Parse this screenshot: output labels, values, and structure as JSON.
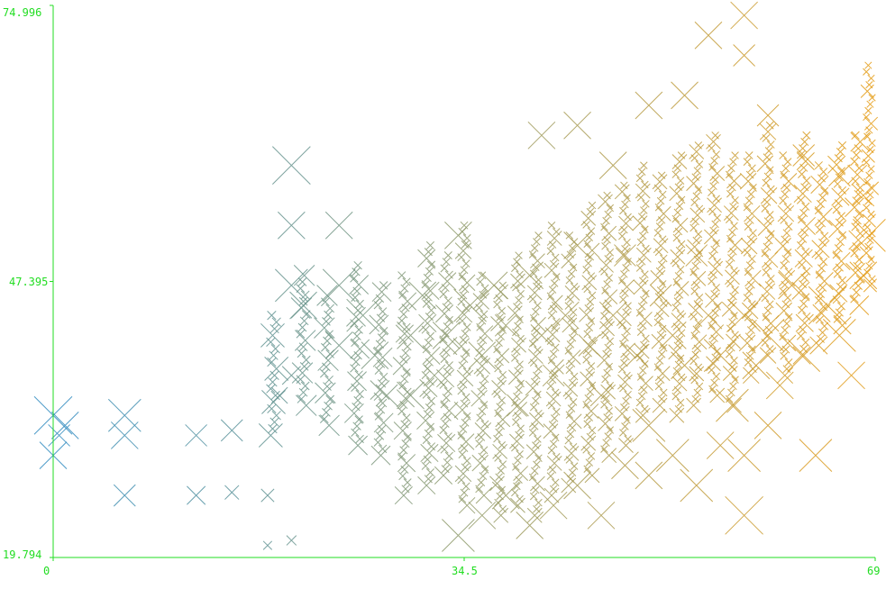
{
  "chart_data": {
    "type": "scatter",
    "marker": "x",
    "title": "",
    "xlabel": "",
    "ylabel": "",
    "xlim": [
      0,
      69
    ],
    "ylim": [
      19.794,
      74.996
    ],
    "x_ticks": [
      {
        "value": 0,
        "label": "0"
      },
      {
        "value": 34.5,
        "label": "34.5"
      },
      {
        "value": 69,
        "label": "69"
      }
    ],
    "y_ticks": [
      {
        "value": 19.794,
        "label": "19.794"
      },
      {
        "value": 47.395,
        "label": "47.395"
      },
      {
        "value": 74.996,
        "label": "74.996"
      }
    ],
    "color_scale": {
      "low": "#2f8bbf",
      "mid": "#8f9a6a",
      "high": "#e59a10"
    },
    "axis_color": "#22dd22",
    "points": [
      [
        0,
        34,
        3
      ],
      [
        1,
        33,
        2
      ],
      [
        0,
        30,
        2
      ],
      [
        0.5,
        32,
        1.5
      ],
      [
        6,
        34,
        2.5
      ],
      [
        6,
        32,
        2
      ],
      [
        12,
        32,
        1.5
      ],
      [
        15,
        32.5,
        1.5
      ],
      [
        6,
        26,
        1.5
      ],
      [
        12,
        26,
        1.2
      ],
      [
        15,
        26.3,
        0.8
      ],
      [
        18,
        26,
        0.7
      ],
      [
        18,
        21,
        0.3
      ],
      [
        20,
        21.5,
        0.4
      ],
      [
        20,
        59,
        3
      ],
      [
        20,
        53,
        2
      ],
      [
        20,
        47,
        2.5
      ],
      [
        21,
        45,
        2
      ],
      [
        20,
        38,
        1.2
      ],
      [
        19,
        36,
        1
      ],
      [
        24,
        53,
        2
      ],
      [
        24,
        47,
        2.5
      ],
      [
        24,
        41,
        2
      ],
      [
        26,
        44,
        2.5
      ],
      [
        27,
        40,
        2
      ],
      [
        28,
        36,
        1.5
      ],
      [
        30,
        42,
        2
      ],
      [
        30,
        36,
        2
      ],
      [
        31,
        46,
        2
      ],
      [
        32,
        38,
        1.5
      ],
      [
        33,
        42,
        2
      ],
      [
        34,
        52,
        2
      ],
      [
        35,
        45,
        2.5
      ],
      [
        36,
        40,
        2
      ],
      [
        37,
        47,
        2
      ],
      [
        38,
        43,
        1.5
      ],
      [
        39,
        35,
        1.5
      ],
      [
        40,
        48,
        2
      ],
      [
        41,
        42,
        1.5
      ],
      [
        42,
        38,
        1.5
      ],
      [
        43,
        44,
        2
      ],
      [
        44,
        51,
        2
      ],
      [
        45,
        41,
        1.5
      ],
      [
        46,
        36,
        1.5
      ],
      [
        47,
        44,
        2
      ],
      [
        48,
        50,
        1.5
      ],
      [
        49,
        40,
        1.5
      ],
      [
        50,
        33,
        2.5
      ],
      [
        51,
        46,
        1.5
      ],
      [
        52,
        42,
        2
      ],
      [
        53,
        39,
        2
      ],
      [
        54,
        50,
        1.5
      ],
      [
        55,
        44,
        2
      ],
      [
        56,
        40,
        2.5
      ],
      [
        57,
        35,
        2.5
      ],
      [
        58,
        44,
        2.5
      ],
      [
        59,
        39,
        2
      ],
      [
        60,
        42,
        2.5
      ],
      [
        61,
        37,
        2
      ],
      [
        62,
        47,
        2
      ],
      [
        63,
        40,
        2.5
      ],
      [
        64,
        30,
        2.5
      ],
      [
        65,
        45,
        3
      ],
      [
        66,
        42,
        2.5
      ],
      [
        67,
        38,
        2
      ],
      [
        68,
        48,
        2
      ],
      [
        68.5,
        52,
        2.5
      ],
      [
        41,
        62,
        2
      ],
      [
        44,
        63,
        2
      ],
      [
        47,
        59,
        2
      ],
      [
        50,
        65,
        2
      ],
      [
        53,
        66,
        2
      ],
      [
        55,
        72,
        2
      ],
      [
        58,
        74,
        2
      ],
      [
        58,
        70,
        1.5
      ],
      [
        60,
        64,
        1.5
      ],
      [
        63,
        60,
        1.5
      ],
      [
        66,
        58,
        1.5
      ],
      [
        68,
        56,
        1.5
      ],
      [
        34,
        22,
        2.5
      ],
      [
        36,
        24,
        2
      ],
      [
        38,
        26,
        2
      ],
      [
        40,
        23,
        2
      ],
      [
        42,
        25,
        2
      ],
      [
        44,
        27,
        2
      ],
      [
        46,
        24,
        2
      ],
      [
        48,
        29,
        2
      ],
      [
        50,
        28,
        2
      ],
      [
        52,
        30,
        2.5
      ],
      [
        54,
        27,
        2.5
      ],
      [
        56,
        31,
        2
      ],
      [
        58,
        24,
        3
      ],
      [
        58,
        30,
        2.5
      ],
      [
        60,
        33,
        2
      ]
    ],
    "dense_columns": [
      [
        18.5,
        32,
        44,
        1.2
      ],
      [
        21,
        35,
        48,
        1.0
      ],
      [
        23,
        33,
        46,
        1.0
      ],
      [
        25.5,
        31,
        49,
        0.9
      ],
      [
        27.5,
        30,
        47,
        0.9
      ],
      [
        29.5,
        26,
        48,
        0.8
      ],
      [
        31.5,
        27,
        51,
        0.8
      ],
      [
        33,
        28,
        50,
        0.8
      ],
      [
        34.5,
        25,
        53,
        0.7
      ],
      [
        36,
        26,
        48,
        0.7
      ],
      [
        37.5,
        24,
        47,
        0.6
      ],
      [
        39,
        25,
        50,
        0.6
      ],
      [
        40.5,
        24,
        52,
        0.6
      ],
      [
        42,
        26,
        53,
        0.6
      ],
      [
        43.5,
        27,
        52,
        0.6
      ],
      [
        45,
        28,
        55,
        0.6
      ],
      [
        46.5,
        30,
        56,
        0.6
      ],
      [
        48,
        31,
        57,
        0.6
      ],
      [
        49.5,
        34,
        59,
        0.6
      ],
      [
        51,
        35,
        58,
        0.6
      ],
      [
        52.5,
        34,
        60,
        0.6
      ],
      [
        54,
        35,
        61,
        0.6
      ],
      [
        55.5,
        36,
        62,
        0.6
      ],
      [
        57,
        35,
        60,
        0.6
      ],
      [
        58.5,
        38,
        60,
        0.7
      ],
      [
        60,
        40,
        63,
        0.7
      ],
      [
        61.5,
        38,
        60,
        0.7
      ],
      [
        63,
        40,
        62,
        0.8
      ],
      [
        64.5,
        41,
        59,
        0.8
      ],
      [
        66,
        43,
        61,
        0.8
      ],
      [
        67.5,
        45,
        62,
        0.9
      ],
      [
        68.5,
        47,
        69,
        0.5
      ]
    ]
  }
}
